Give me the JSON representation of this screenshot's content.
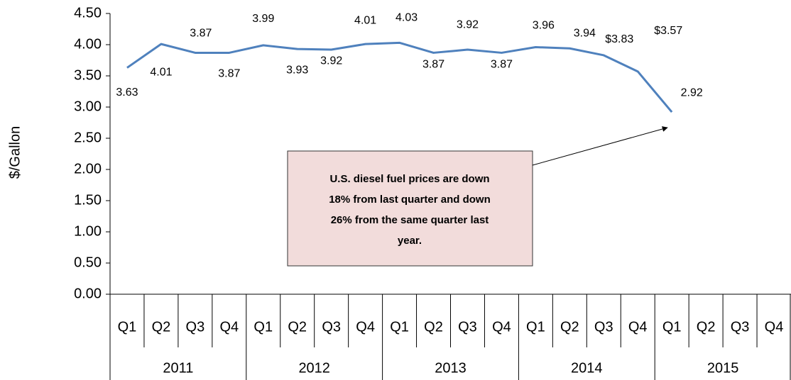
{
  "chart_data": {
    "type": "line",
    "y_axis_label": "$/Gallon",
    "categories": [
      "Q1",
      "Q2",
      "Q3",
      "Q4",
      "Q1",
      "Q2",
      "Q3",
      "Q4",
      "Q1",
      "Q2",
      "Q3",
      "Q4",
      "Q1",
      "Q2",
      "Q3",
      "Q4",
      "Q1",
      "Q2",
      "Q3",
      "Q4"
    ],
    "groups": [
      "2011",
      "2012",
      "2013",
      "2014",
      "2015"
    ],
    "series": [
      {
        "name": "U.S. diesel fuel price",
        "color": "#4f81bd",
        "values": [
          3.63,
          4.01,
          3.87,
          3.87,
          3.99,
          3.93,
          3.92,
          4.01,
          4.03,
          3.87,
          3.92,
          3.87,
          3.96,
          3.94,
          3.83,
          3.57,
          2.92,
          null,
          null,
          null
        ],
        "value_labels": [
          "3.63",
          "4.01",
          "3.87",
          "3.87",
          "3.99",
          "3.93",
          "3.92",
          "4.01",
          "4.03",
          "3.87",
          "3.92",
          "3.87",
          "3.96",
          "3.94",
          "$3.83",
          "$3.57",
          "2.92",
          null,
          null,
          null
        ]
      }
    ],
    "ylim": [
      0,
      4.5
    ],
    "yticks": [
      {
        "value": 0,
        "label": "0.00"
      },
      {
        "value": 0.5,
        "label": "0.50"
      },
      {
        "value": 1,
        "label": "1.00"
      },
      {
        "value": 1.5,
        "label": "1.50"
      },
      {
        "value": 2,
        "label": "2.00"
      },
      {
        "value": 2.5,
        "label": "2.50"
      },
      {
        "value": 3,
        "label": "3.00"
      },
      {
        "value": 3.5,
        "label": "3.50"
      },
      {
        "value": 4,
        "label": "4.00"
      },
      {
        "value": 4.5,
        "label": "4.50"
      }
    ],
    "grid": false,
    "annotation": [
      "U.S. diesel fuel prices are down",
      "18% from last quarter and down",
      "26% from the same quarter last",
      "year."
    ]
  }
}
